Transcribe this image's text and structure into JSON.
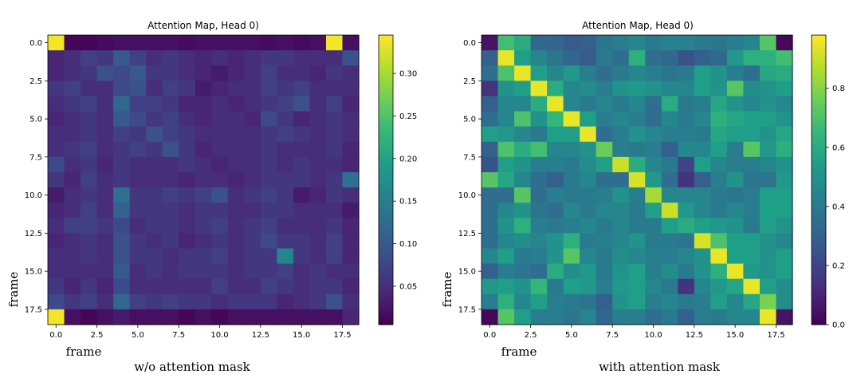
{
  "chart_data": [
    {
      "type": "heatmap",
      "title": "Attention Map, Head 0)",
      "caption": "w/o attention mask",
      "xlabel": "frame",
      "ylabel": "frame",
      "n": 19,
      "x_ticks": [
        "0.0",
        "2.5",
        "5.0",
        "7.5",
        "10.0",
        "12.5",
        "15.0",
        "17.5"
      ],
      "y_ticks": [
        "0.0",
        "2.5",
        "5.0",
        "7.5",
        "10.0",
        "12.5",
        "15.0",
        "17.5"
      ],
      "tick_values": [
        0,
        2.5,
        5,
        7.5,
        10,
        12.5,
        15,
        17.5
      ],
      "vmin": 0.005,
      "vmax": 0.345,
      "colorbar_ticks": [
        "0.05",
        "0.10",
        "0.15",
        "0.20",
        "0.25",
        "0.30"
      ],
      "colorbar_values": [
        0.05,
        0.1,
        0.15,
        0.2,
        0.25,
        0.3
      ],
      "values": [
        [
          0.34,
          0.01,
          0.01,
          0.015,
          0.02,
          0.02,
          0.02,
          0.02,
          0.015,
          0.02,
          0.02,
          0.02,
          0.02,
          0.015,
          0.02,
          0.015,
          0.02,
          0.34,
          0.02
        ],
        [
          0.04,
          0.05,
          0.07,
          0.06,
          0.1,
          0.07,
          0.05,
          0.06,
          0.05,
          0.04,
          0.05,
          0.04,
          0.05,
          0.06,
          0.06,
          0.05,
          0.05,
          0.05,
          0.09
        ],
        [
          0.04,
          0.05,
          0.06,
          0.09,
          0.08,
          0.1,
          0.06,
          0.06,
          0.05,
          0.04,
          0.03,
          0.04,
          0.05,
          0.07,
          0.05,
          0.05,
          0.04,
          0.06,
          0.05
        ],
        [
          0.06,
          0.07,
          0.05,
          0.05,
          0.08,
          0.09,
          0.05,
          0.07,
          0.06,
          0.03,
          0.04,
          0.05,
          0.05,
          0.07,
          0.06,
          0.07,
          0.05,
          0.05,
          0.05
        ],
        [
          0.05,
          0.06,
          0.07,
          0.05,
          0.12,
          0.07,
          0.07,
          0.06,
          0.04,
          0.04,
          0.05,
          0.04,
          0.05,
          0.06,
          0.07,
          0.09,
          0.05,
          0.07,
          0.04
        ],
        [
          0.04,
          0.05,
          0.06,
          0.05,
          0.1,
          0.08,
          0.06,
          0.07,
          0.05,
          0.04,
          0.05,
          0.05,
          0.04,
          0.08,
          0.06,
          0.04,
          0.05,
          0.06,
          0.05
        ],
        [
          0.05,
          0.05,
          0.06,
          0.05,
          0.07,
          0.06,
          0.09,
          0.07,
          0.06,
          0.05,
          0.05,
          0.05,
          0.05,
          0.06,
          0.07,
          0.06,
          0.05,
          0.06,
          0.05
        ],
        [
          0.05,
          0.06,
          0.07,
          0.05,
          0.06,
          0.07,
          0.06,
          0.09,
          0.06,
          0.04,
          0.05,
          0.05,
          0.05,
          0.06,
          0.05,
          0.05,
          0.05,
          0.06,
          0.04
        ],
        [
          0.08,
          0.05,
          0.06,
          0.04,
          0.06,
          0.05,
          0.05,
          0.05,
          0.06,
          0.05,
          0.04,
          0.05,
          0.05,
          0.06,
          0.05,
          0.06,
          0.05,
          0.05,
          0.04
        ],
        [
          0.06,
          0.04,
          0.07,
          0.05,
          0.06,
          0.05,
          0.05,
          0.05,
          0.04,
          0.05,
          0.05,
          0.04,
          0.05,
          0.06,
          0.06,
          0.06,
          0.05,
          0.06,
          0.13
        ],
        [
          0.03,
          0.05,
          0.06,
          0.05,
          0.13,
          0.06,
          0.06,
          0.07,
          0.06,
          0.07,
          0.09,
          0.05,
          0.06,
          0.07,
          0.06,
          0.03,
          0.04,
          0.06,
          0.05
        ],
        [
          0.04,
          0.05,
          0.07,
          0.05,
          0.11,
          0.06,
          0.06,
          0.06,
          0.05,
          0.06,
          0.06,
          0.05,
          0.05,
          0.06,
          0.06,
          0.05,
          0.05,
          0.05,
          0.03
        ],
        [
          0.05,
          0.07,
          0.07,
          0.06,
          0.08,
          0.05,
          0.06,
          0.06,
          0.05,
          0.06,
          0.07,
          0.05,
          0.06,
          0.07,
          0.05,
          0.05,
          0.05,
          0.06,
          0.04
        ],
        [
          0.04,
          0.05,
          0.06,
          0.05,
          0.09,
          0.06,
          0.05,
          0.06,
          0.04,
          0.05,
          0.06,
          0.05,
          0.06,
          0.08,
          0.06,
          0.06,
          0.05,
          0.07,
          0.04
        ],
        [
          0.05,
          0.05,
          0.06,
          0.05,
          0.09,
          0.06,
          0.06,
          0.05,
          0.06,
          0.06,
          0.07,
          0.05,
          0.06,
          0.06,
          0.16,
          0.06,
          0.05,
          0.07,
          0.04
        ],
        [
          0.05,
          0.05,
          0.05,
          0.05,
          0.1,
          0.05,
          0.06,
          0.05,
          0.06,
          0.06,
          0.06,
          0.05,
          0.06,
          0.06,
          0.07,
          0.05,
          0.06,
          0.05,
          0.05
        ],
        [
          0.06,
          0.04,
          0.06,
          0.04,
          0.08,
          0.05,
          0.05,
          0.05,
          0.05,
          0.05,
          0.07,
          0.05,
          0.05,
          0.07,
          0.06,
          0.05,
          0.06,
          0.06,
          0.04
        ],
        [
          0.08,
          0.06,
          0.07,
          0.05,
          0.12,
          0.07,
          0.06,
          0.07,
          0.06,
          0.06,
          0.05,
          0.06,
          0.06,
          0.06,
          0.04,
          0.05,
          0.06,
          0.09,
          0.05
        ],
        [
          0.34,
          0.02,
          0.01,
          0.02,
          0.03,
          0.02,
          0.02,
          0.02,
          0.01,
          0.02,
          0.01,
          0.02,
          0.02,
          0.02,
          0.02,
          0.02,
          0.02,
          0.02,
          0.04
        ]
      ]
    },
    {
      "type": "heatmap",
      "title": "Attention Map, Head 0)",
      "caption": "with attention mask",
      "xlabel": "frame",
      "ylabel": "frame",
      "n": 19,
      "x_ticks": [
        "0.0",
        "2.5",
        "5.0",
        "7.5",
        "10.0",
        "12.5",
        "15.0",
        "17.5"
      ],
      "y_ticks": [
        "0.0",
        "2.5",
        "5.0",
        "7.5",
        "10.0",
        "12.5",
        "15.0",
        "17.5"
      ],
      "tick_values": [
        0,
        2.5,
        5,
        7.5,
        10,
        12.5,
        15,
        17.5
      ],
      "vmin": 0.0,
      "vmax": 0.98,
      "colorbar_ticks": [
        "0.0",
        "0.2",
        "0.4",
        "0.6",
        "0.8"
      ],
      "colorbar_values": [
        0.0,
        0.2,
        0.4,
        0.6,
        0.8
      ],
      "values": [
        [
          0.05,
          0.68,
          0.6,
          0.33,
          0.32,
          0.28,
          0.3,
          0.38,
          0.42,
          0.45,
          0.4,
          0.44,
          0.43,
          0.4,
          0.38,
          0.42,
          0.45,
          0.72,
          0.02
        ],
        [
          0.3,
          0.95,
          0.55,
          0.45,
          0.38,
          0.32,
          0.28,
          0.4,
          0.35,
          0.62,
          0.35,
          0.33,
          0.25,
          0.3,
          0.33,
          0.52,
          0.62,
          0.62,
          0.68
        ],
        [
          0.35,
          0.7,
          0.95,
          0.55,
          0.45,
          0.52,
          0.42,
          0.35,
          0.4,
          0.45,
          0.42,
          0.38,
          0.4,
          0.55,
          0.5,
          0.42,
          0.35,
          0.58,
          0.6
        ],
        [
          0.15,
          0.5,
          0.55,
          0.95,
          0.6,
          0.45,
          0.48,
          0.42,
          0.5,
          0.52,
          0.5,
          0.45,
          0.45,
          0.55,
          0.5,
          0.72,
          0.48,
          0.5,
          0.55
        ],
        [
          0.3,
          0.45,
          0.45,
          0.6,
          0.95,
          0.45,
          0.4,
          0.45,
          0.4,
          0.45,
          0.35,
          0.6,
          0.4,
          0.42,
          0.58,
          0.5,
          0.45,
          0.5,
          0.45
        ],
        [
          0.35,
          0.45,
          0.7,
          0.5,
          0.65,
          0.95,
          0.55,
          0.42,
          0.45,
          0.42,
          0.35,
          0.45,
          0.4,
          0.45,
          0.62,
          0.58,
          0.55,
          0.55,
          0.5
        ],
        [
          0.55,
          0.52,
          0.45,
          0.4,
          0.55,
          0.55,
          0.95,
          0.35,
          0.42,
          0.5,
          0.45,
          0.42,
          0.42,
          0.4,
          0.58,
          0.55,
          0.55,
          0.5,
          0.58
        ],
        [
          0.3,
          0.7,
          0.6,
          0.68,
          0.45,
          0.45,
          0.5,
          0.75,
          0.42,
          0.4,
          0.42,
          0.3,
          0.45,
          0.45,
          0.55,
          0.42,
          0.72,
          0.52,
          0.62
        ],
        [
          0.25,
          0.55,
          0.5,
          0.42,
          0.42,
          0.4,
          0.48,
          0.55,
          0.9,
          0.6,
          0.45,
          0.4,
          0.2,
          0.55,
          0.45,
          0.42,
          0.42,
          0.45,
          0.5
        ],
        [
          0.72,
          0.58,
          0.45,
          0.35,
          0.3,
          0.4,
          0.45,
          0.35,
          0.35,
          0.92,
          0.52,
          0.35,
          0.15,
          0.3,
          0.42,
          0.5,
          0.38,
          0.38,
          0.52
        ],
        [
          0.35,
          0.35,
          0.72,
          0.35,
          0.42,
          0.4,
          0.4,
          0.42,
          0.5,
          0.42,
          0.85,
          0.45,
          0.45,
          0.45,
          0.4,
          0.38,
          0.42,
          0.55,
          0.55
        ],
        [
          0.35,
          0.45,
          0.5,
          0.38,
          0.35,
          0.45,
          0.4,
          0.45,
          0.45,
          0.4,
          0.55,
          0.9,
          0.52,
          0.45,
          0.4,
          0.45,
          0.42,
          0.55,
          0.55
        ],
        [
          0.35,
          0.5,
          0.62,
          0.42,
          0.4,
          0.42,
          0.45,
          0.4,
          0.45,
          0.4,
          0.4,
          0.55,
          0.6,
          0.55,
          0.52,
          0.5,
          0.4,
          0.55,
          0.5
        ],
        [
          0.35,
          0.45,
          0.48,
          0.45,
          0.5,
          0.62,
          0.4,
          0.42,
          0.45,
          0.5,
          0.4,
          0.4,
          0.38,
          0.92,
          0.7,
          0.55,
          0.55,
          0.5,
          0.45
        ],
        [
          0.45,
          0.55,
          0.4,
          0.42,
          0.5,
          0.72,
          0.45,
          0.4,
          0.48,
          0.45,
          0.42,
          0.42,
          0.45,
          0.5,
          0.95,
          0.55,
          0.55,
          0.5,
          0.55
        ],
        [
          0.3,
          0.42,
          0.38,
          0.35,
          0.6,
          0.48,
          0.52,
          0.4,
          0.5,
          0.55,
          0.42,
          0.48,
          0.4,
          0.5,
          0.62,
          0.95,
          0.52,
          0.5,
          0.55
        ],
        [
          0.52,
          0.55,
          0.5,
          0.65,
          0.4,
          0.55,
          0.52,
          0.42,
          0.52,
          0.55,
          0.45,
          0.4,
          0.15,
          0.45,
          0.52,
          0.58,
          0.95,
          0.55,
          0.48
        ],
        [
          0.42,
          0.62,
          0.45,
          0.55,
          0.42,
          0.4,
          0.38,
          0.3,
          0.5,
          0.55,
          0.42,
          0.45,
          0.4,
          0.42,
          0.55,
          0.45,
          0.58,
          0.78,
          0.48
        ],
        [
          0.02,
          0.72,
          0.55,
          0.42,
          0.42,
          0.38,
          0.45,
          0.32,
          0.42,
          0.42,
          0.35,
          0.4,
          0.3,
          0.42,
          0.4,
          0.45,
          0.45,
          0.95,
          0.05
        ]
      ]
    }
  ]
}
